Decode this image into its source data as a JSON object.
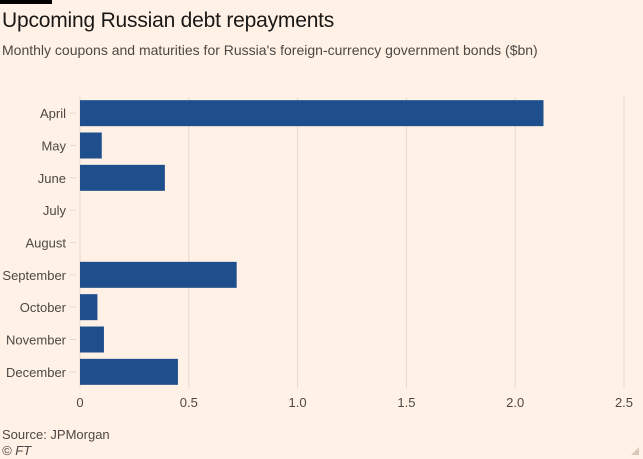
{
  "header": {
    "title": "Upcoming Russian debt repayments",
    "subtitle": "Monthly coupons and maturities for Russia's foreign-currency government bonds ($bn)"
  },
  "footer": {
    "source": "Source: JPMorgan",
    "credit": "© FT"
  },
  "colors": {
    "bar": "#1e4e8c",
    "background": "#fff1e5",
    "grid": "#e6d9ce",
    "text": "#4d4845"
  },
  "chart_data": {
    "type": "bar",
    "orientation": "horizontal",
    "categories": [
      "April",
      "May",
      "June",
      "July",
      "August",
      "September",
      "October",
      "November",
      "December"
    ],
    "values": [
      2.13,
      0.1,
      0.39,
      0,
      0,
      0.72,
      0.08,
      0.11,
      0.45
    ],
    "xlim": [
      0,
      2.5
    ],
    "xticks": [
      0,
      0.5,
      1,
      1.5,
      2,
      2.5
    ],
    "xtick_labels": [
      "0",
      "0.5",
      "1.0",
      "1.5",
      "2.0",
      "2.5"
    ],
    "grid": true
  }
}
